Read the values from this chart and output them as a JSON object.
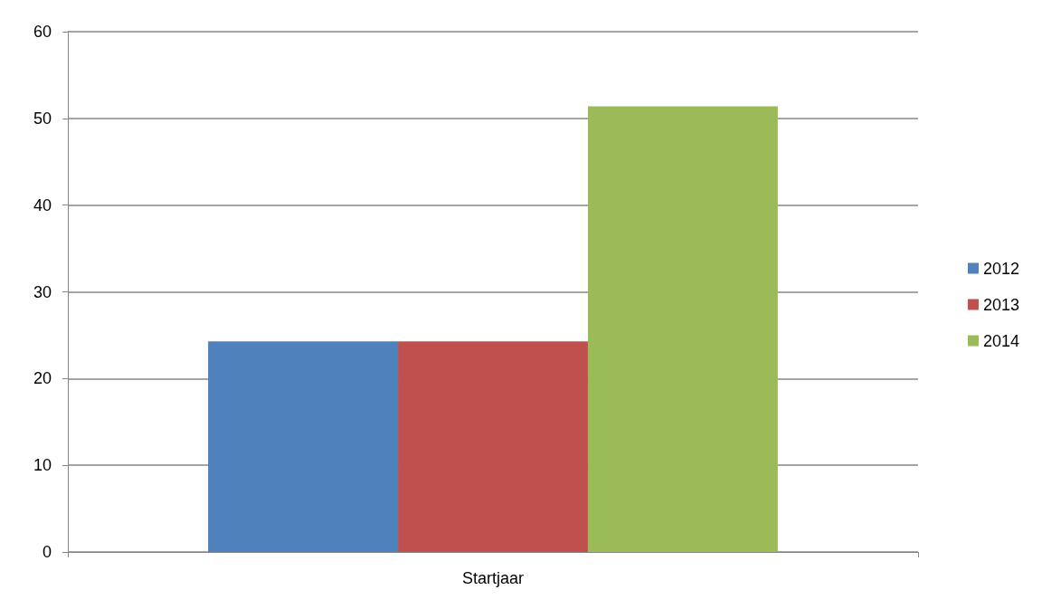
{
  "chart_data": {
    "type": "bar",
    "categories": [
      "Startjaar"
    ],
    "series": [
      {
        "name": "2012",
        "color": "#4f81bd",
        "values": [
          24.3
        ]
      },
      {
        "name": "2013",
        "color": "#c0504d",
        "values": [
          24.3
        ]
      },
      {
        "name": "2014",
        "color": "#9bbb59",
        "values": [
          51.4
        ]
      }
    ],
    "ylim": [
      0,
      60
    ],
    "yticks": [
      0,
      10,
      20,
      30,
      40,
      50,
      60
    ],
    "grid": "y",
    "legend": "right"
  }
}
